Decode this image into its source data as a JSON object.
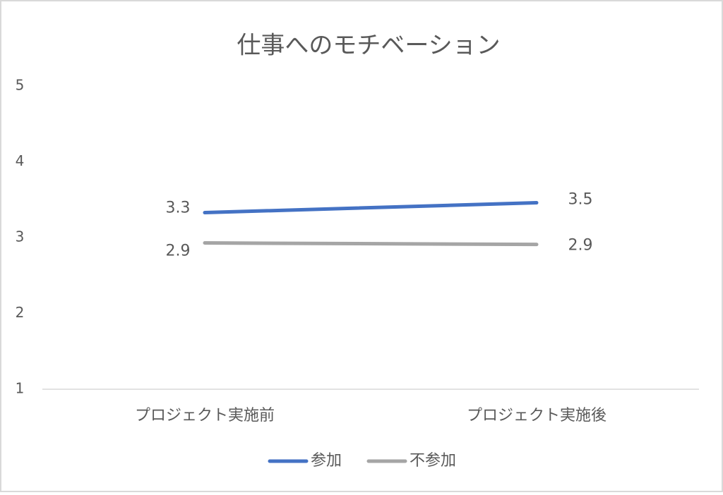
{
  "chart_data": {
    "type": "line",
    "title": "仕事へのモチベーション",
    "categories": [
      "プロジェクト実施前",
      "プロジェクト実施後"
    ],
    "series": [
      {
        "name": "参加",
        "color": "#4472c4",
        "values": [
          3.33,
          3.46
        ],
        "value_labels": [
          "3.3",
          "3.5"
        ]
      },
      {
        "name": "不参加",
        "color": "#a5a5a5",
        "values": [
          2.93,
          2.91
        ],
        "value_labels": [
          "2.9",
          "2.9"
        ]
      }
    ],
    "ylim": [
      1,
      5
    ],
    "yticks": [
      1,
      2,
      3,
      4,
      5
    ],
    "grid": false,
    "legend": "bottom"
  }
}
